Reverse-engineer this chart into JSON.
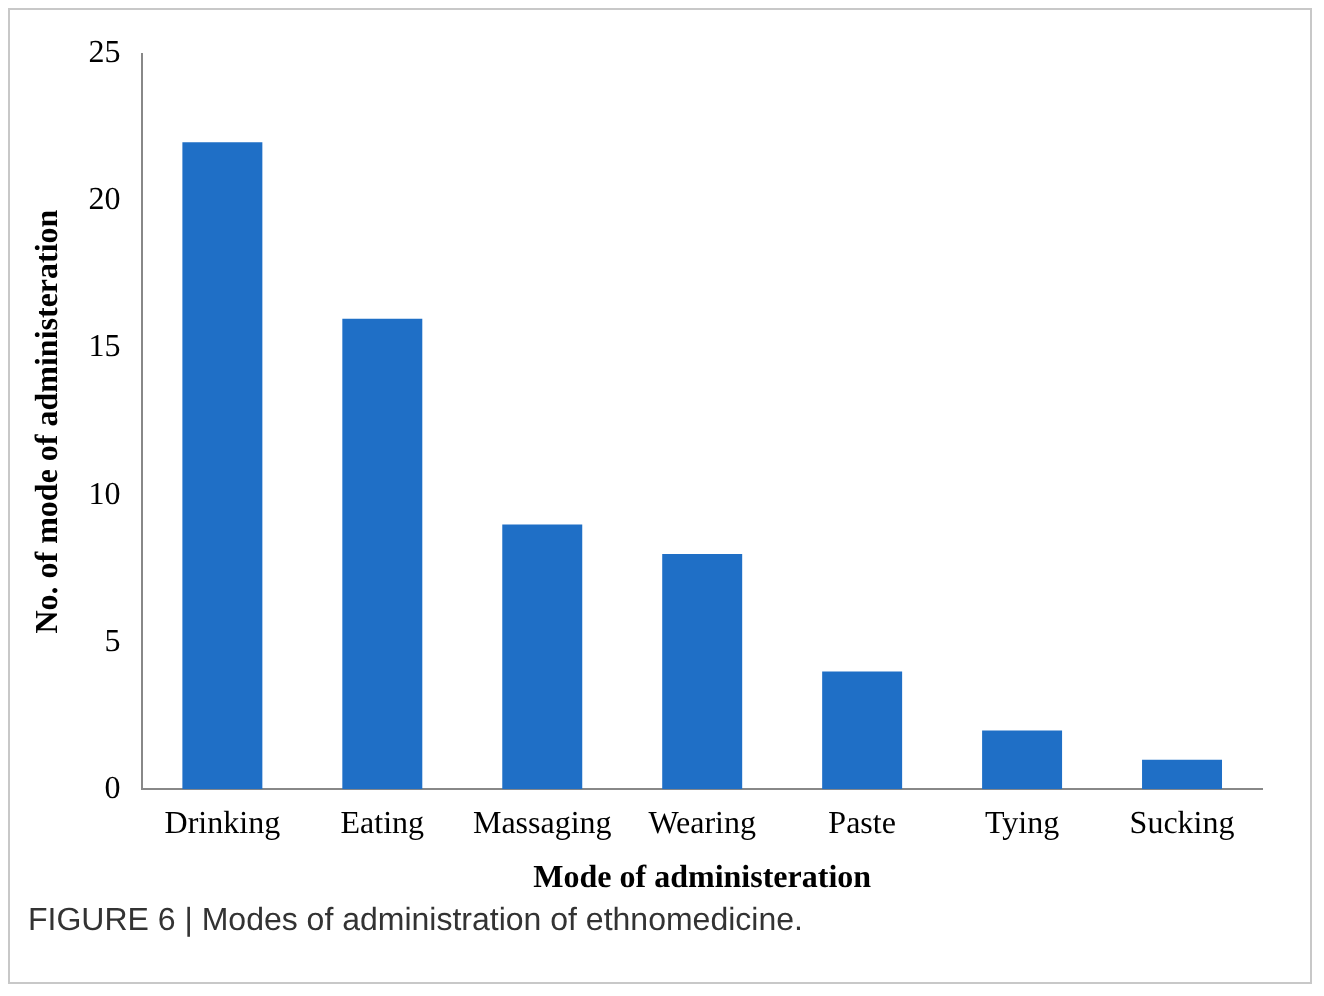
{
  "chart_data": {
    "type": "bar",
    "xlabel": "Mode of administeration",
    "ylabel": "No. of mode of administeration",
    "categories": [
      "Drinking",
      "Eating",
      "Massaging",
      "Wearing",
      "Paste",
      "Tying",
      "Sucking"
    ],
    "values": [
      22,
      16,
      9,
      8,
      4,
      2,
      1
    ],
    "color": "#1f6fc6",
    "ylim": [
      0,
      25
    ],
    "yticks": [
      0,
      5,
      10,
      15,
      20,
      25
    ],
    "grid": false,
    "annotations": [
      "FIGURE 6 | Modes of administration of ethnomedicine."
    ]
  }
}
